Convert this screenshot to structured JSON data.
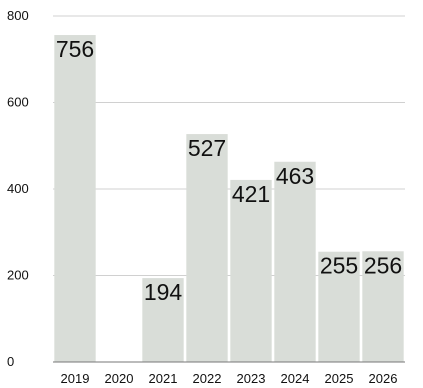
{
  "chart_data": {
    "type": "bar",
    "categories": [
      "2019",
      "2020",
      "2021",
      "2022",
      "2023",
      "2024",
      "2025",
      "2026"
    ],
    "values": [
      756,
      0,
      194,
      527,
      421,
      463,
      255,
      256
    ],
    "value_labels": [
      "756",
      "",
      "194",
      "527",
      "421",
      "463",
      "255",
      "256"
    ],
    "yticks": [
      0,
      200,
      400,
      600,
      800
    ],
    "ylim": [
      0,
      800
    ],
    "grid": true,
    "legend": "none"
  },
  "colors": {
    "bar": "#d9ddd8",
    "grid": "#d0d0d0",
    "text": "#111111",
    "baseline": "#777777"
  }
}
